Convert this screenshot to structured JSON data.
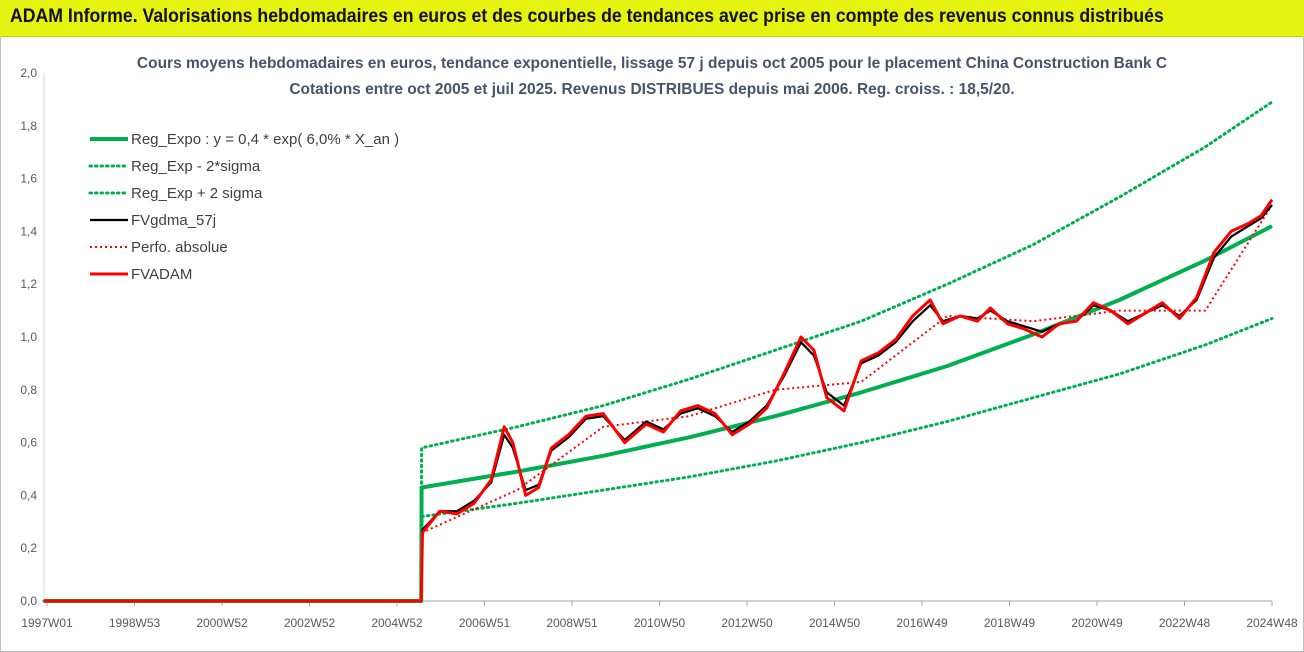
{
  "header": {
    "banner_text": "ADAM Informe. Valorisations hebdomadaires en euros et des courbes de tendances avec prise en compte des revenus connus distribués",
    "banner_color": "#e6f20f"
  },
  "chart_data": {
    "type": "line",
    "title": "Cours moyens hebdomadaires en euros, tendance exponentielle, lissage 57 j depuis oct 2005 pour le placement China Construction Bank C",
    "subtitle": "Cotations entre oct 2005 et juil 2025. Revenus DISTRIBUES depuis mai 2006. Reg. croiss. : 18,5/20.",
    "y_ticks": [
      "0,0",
      "0,2",
      "0,4",
      "0,6",
      "0,8",
      "1,0",
      "1,2",
      "1,4",
      "1,6",
      "1,8",
      "2,0"
    ],
    "x_ticks": [
      "1997W01",
      "1998W53",
      "2000W52",
      "2002W52",
      "2004W52",
      "2006W51",
      "2008W51",
      "2010W50",
      "2012W50",
      "2014W50",
      "2016W49",
      "2018W49",
      "2020W49",
      "2022W48",
      "2024W48"
    ],
    "ylim": [
      0,
      2
    ],
    "x_range_years": [
      1997.0,
      2025.55
    ],
    "legend_position": "top-left",
    "grid": false,
    "colors": {
      "reg": "#00b050",
      "fvg": "#000000",
      "perf": "#ff0000",
      "fvadam": "#ff0000"
    },
    "series": [
      {
        "name": "Reg_Expo : y = 0,4 * exp( 6,0% * X_an )",
        "style": "solid-thick-green",
        "x": [
          1997.0,
          2005.77,
          2005.78,
          2008.0,
          2010.0,
          2012.0,
          2014.0,
          2016.0,
          2018.0,
          2020.0,
          2022.0,
          2024.0,
          2025.55
        ],
        "y": [
          0.0,
          0.0,
          0.43,
          0.49,
          0.55,
          0.62,
          0.7,
          0.79,
          0.89,
          1.01,
          1.14,
          1.29,
          1.42
        ]
      },
      {
        "name": "Reg_Exp - 2*sigma",
        "style": "dotted-green",
        "x": [
          1997.0,
          2005.77,
          2005.78,
          2008.0,
          2010.0,
          2012.0,
          2014.0,
          2016.0,
          2018.0,
          2020.0,
          2022.0,
          2024.0,
          2025.55
        ],
        "y": [
          0.0,
          0.0,
          0.32,
          0.37,
          0.42,
          0.47,
          0.53,
          0.6,
          0.68,
          0.77,
          0.86,
          0.97,
          1.07
        ]
      },
      {
        "name": "Reg_Exp + 2 sigma",
        "style": "dotted-green",
        "x": [
          1997.0,
          2005.77,
          2005.78,
          2008.0,
          2010.0,
          2012.0,
          2014.0,
          2016.0,
          2018.0,
          2020.0,
          2022.0,
          2024.0,
          2025.55
        ],
        "y": [
          0.0,
          0.0,
          0.58,
          0.66,
          0.74,
          0.84,
          0.95,
          1.06,
          1.2,
          1.35,
          1.53,
          1.72,
          1.89
        ]
      },
      {
        "name": "FVgdma_57j",
        "style": "solid-black",
        "x": [
          1997.0,
          2005.77,
          2005.8,
          2006.2,
          2006.6,
          2007.0,
          2007.4,
          2007.7,
          2007.9,
          2008.2,
          2008.5,
          2008.8,
          2009.2,
          2009.6,
          2010.0,
          2010.5,
          2011.0,
          2011.4,
          2011.8,
          2012.2,
          2012.6,
          2013.0,
          2013.4,
          2013.8,
          2014.2,
          2014.6,
          2014.9,
          2015.2,
          2015.6,
          2016.0,
          2016.4,
          2016.8,
          2017.2,
          2017.6,
          2017.9,
          2018.3,
          2018.7,
          2019.0,
          2019.4,
          2019.8,
          2020.2,
          2020.6,
          2021.0,
          2021.4,
          2021.8,
          2022.2,
          2022.6,
          2023.0,
          2023.4,
          2023.8,
          2024.2,
          2024.6,
          2025.0,
          2025.3,
          2025.55
        ],
        "y": [
          0.0,
          0.0,
          0.27,
          0.34,
          0.34,
          0.38,
          0.45,
          0.63,
          0.58,
          0.42,
          0.44,
          0.57,
          0.62,
          0.69,
          0.7,
          0.61,
          0.68,
          0.65,
          0.71,
          0.73,
          0.7,
          0.64,
          0.68,
          0.74,
          0.85,
          0.98,
          0.93,
          0.79,
          0.74,
          0.9,
          0.93,
          0.98,
          1.06,
          1.12,
          1.06,
          1.08,
          1.07,
          1.1,
          1.06,
          1.04,
          1.02,
          1.05,
          1.06,
          1.12,
          1.1,
          1.06,
          1.09,
          1.12,
          1.08,
          1.14,
          1.3,
          1.38,
          1.42,
          1.45,
          1.5
        ]
      },
      {
        "name": "Perfo. absolue",
        "style": "dotted-red",
        "x": [
          1997.0,
          2005.77,
          2005.8,
          2008.0,
          2010.0,
          2012.0,
          2014.0,
          2016.0,
          2018.0,
          2020.0,
          2022.0,
          2024.0,
          2025.55
        ],
        "y": [
          0.0,
          0.0,
          0.26,
          0.42,
          0.66,
          0.7,
          0.8,
          0.83,
          1.08,
          1.06,
          1.1,
          1.1,
          1.5
        ]
      },
      {
        "name": "FVADAM",
        "style": "solid-thick-red",
        "x": [
          1997.0,
          2005.77,
          2005.8,
          2006.2,
          2006.6,
          2007.0,
          2007.4,
          2007.7,
          2007.9,
          2008.2,
          2008.5,
          2008.8,
          2009.2,
          2009.6,
          2010.0,
          2010.5,
          2011.0,
          2011.4,
          2011.8,
          2012.2,
          2012.6,
          2013.0,
          2013.4,
          2013.8,
          2014.2,
          2014.6,
          2014.9,
          2015.2,
          2015.6,
          2016.0,
          2016.4,
          2016.8,
          2017.2,
          2017.6,
          2017.9,
          2018.3,
          2018.7,
          2019.0,
          2019.4,
          2019.8,
          2020.2,
          2020.6,
          2021.0,
          2021.4,
          2021.8,
          2022.2,
          2022.6,
          2023.0,
          2023.4,
          2023.8,
          2024.2,
          2024.6,
          2025.0,
          2025.3,
          2025.55
        ],
        "y": [
          0.0,
          0.0,
          0.26,
          0.34,
          0.33,
          0.37,
          0.46,
          0.66,
          0.6,
          0.4,
          0.43,
          0.58,
          0.63,
          0.7,
          0.71,
          0.6,
          0.67,
          0.64,
          0.72,
          0.74,
          0.71,
          0.63,
          0.67,
          0.73,
          0.86,
          1.0,
          0.95,
          0.77,
          0.72,
          0.91,
          0.94,
          0.99,
          1.08,
          1.14,
          1.05,
          1.08,
          1.06,
          1.11,
          1.05,
          1.03,
          1.0,
          1.05,
          1.06,
          1.13,
          1.1,
          1.05,
          1.09,
          1.13,
          1.07,
          1.15,
          1.32,
          1.4,
          1.43,
          1.46,
          1.52
        ]
      }
    ]
  }
}
